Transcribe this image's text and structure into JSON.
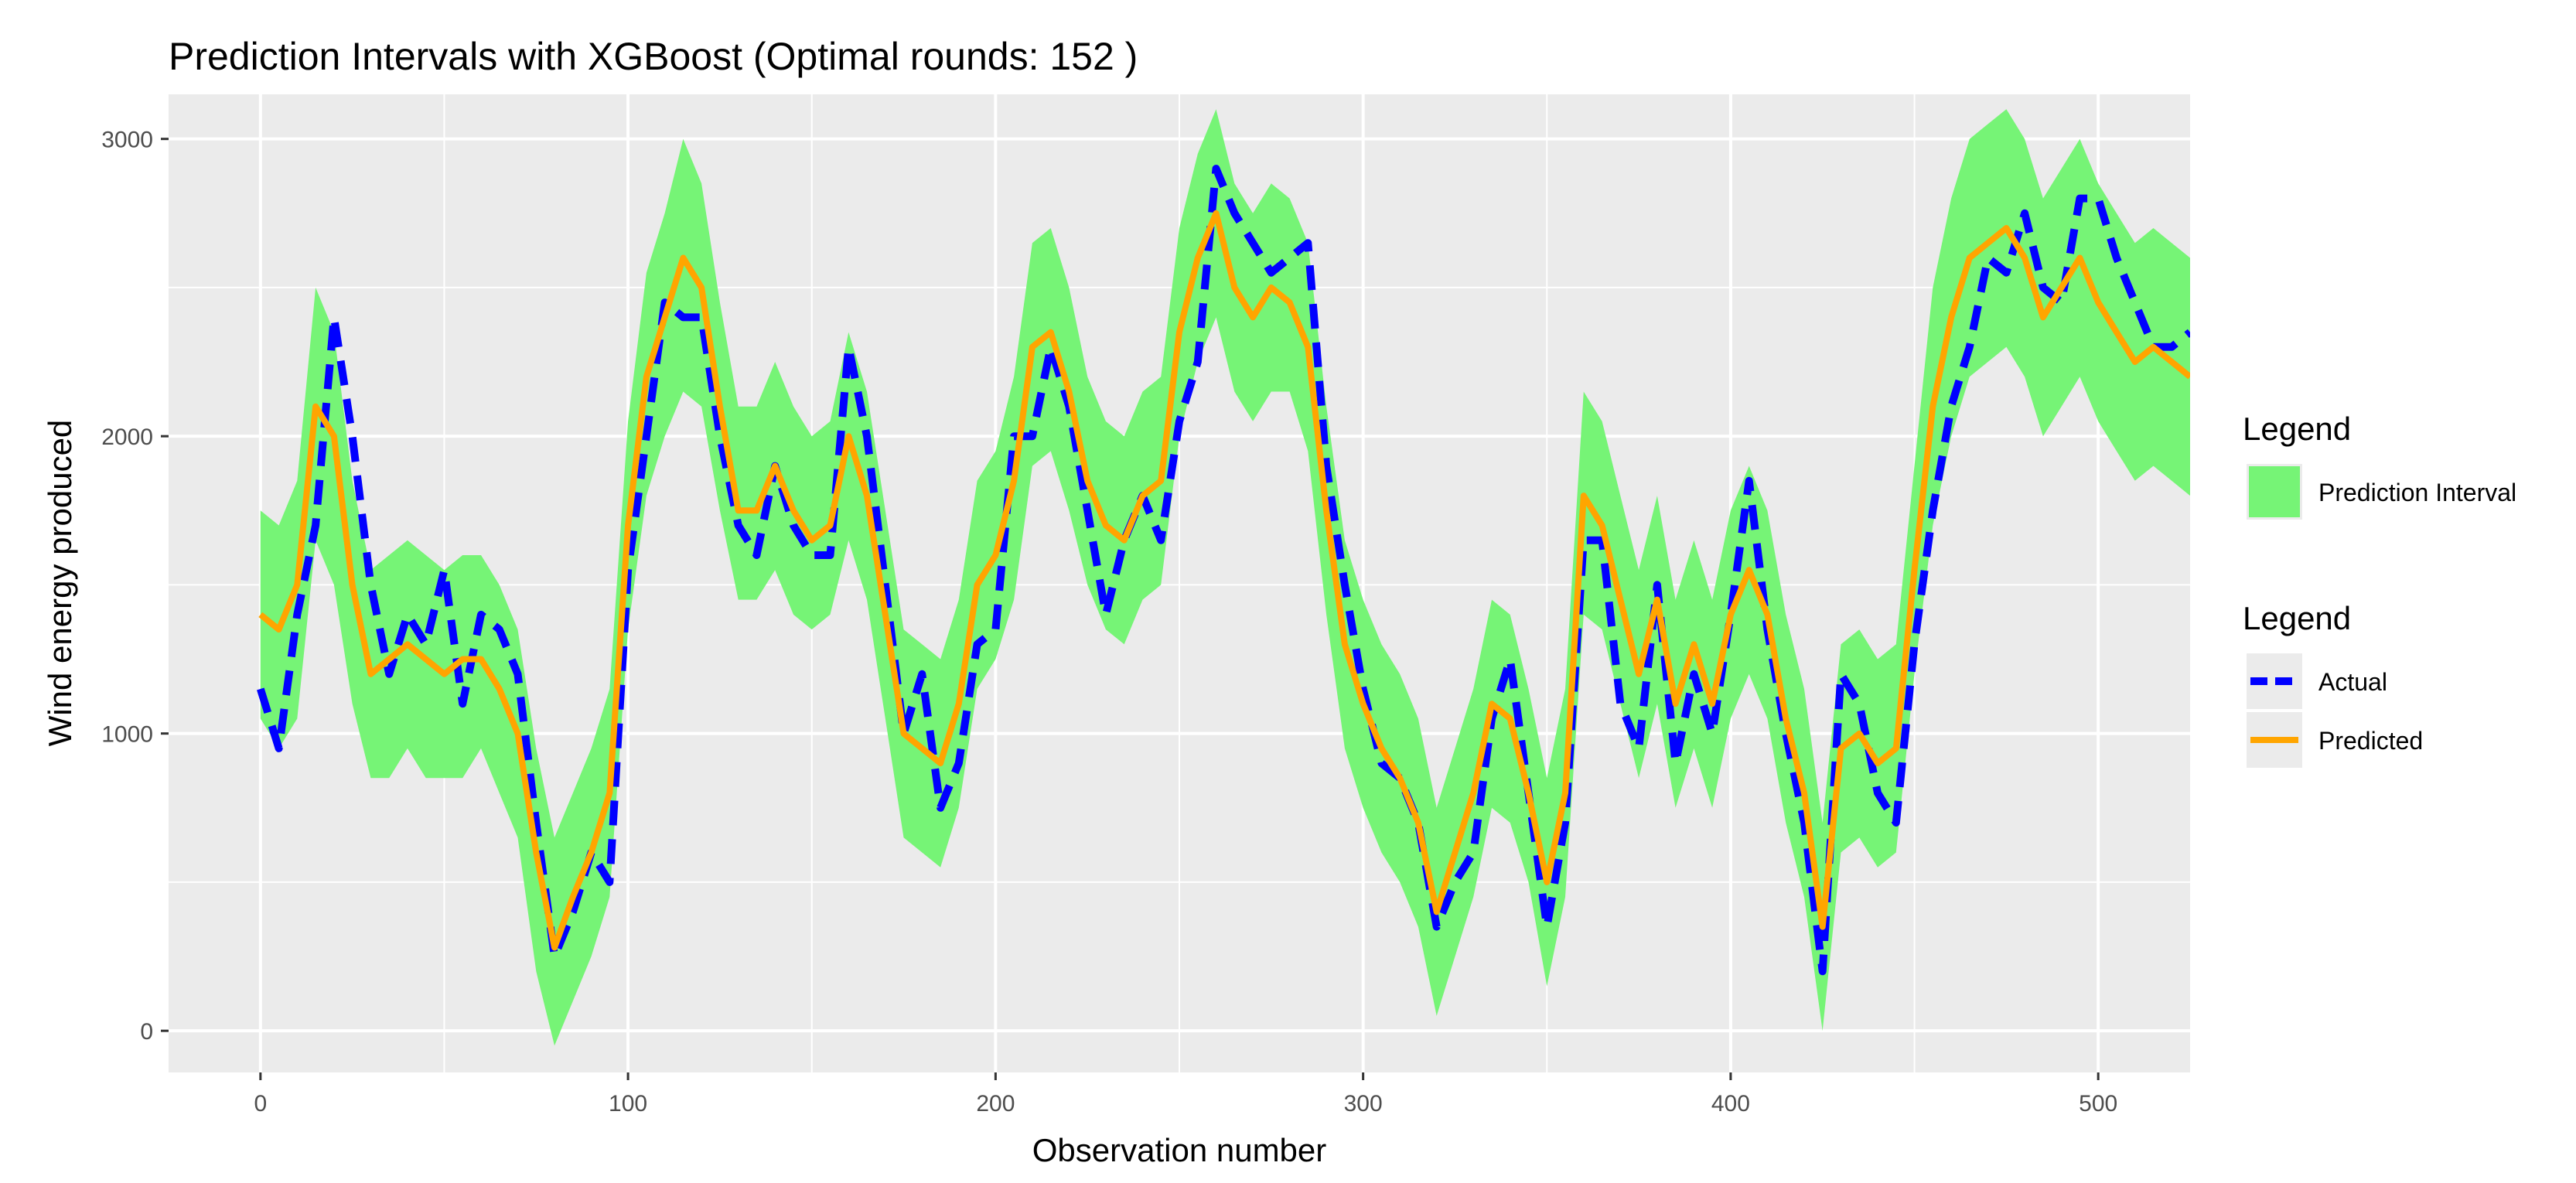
{
  "chart_data": {
    "type": "line",
    "title": "Prediction Intervals with XGBoost (Optimal rounds: 152 )",
    "xlabel": "Observation number",
    "ylabel": "Wind energy produced",
    "xlim": [
      -25,
      525
    ],
    "ylim": [
      -140,
      3150
    ],
    "x_ticks": [
      0,
      100,
      200,
      300,
      400,
      500
    ],
    "x_tick_labels": [
      "0",
      "100",
      "200",
      "300",
      "400",
      "500"
    ],
    "y_ticks": [
      0,
      1000,
      2000,
      3000
    ],
    "y_tick_labels": [
      "0",
      "1000",
      "2000",
      "3000"
    ],
    "grid": true,
    "legend_position": "right",
    "legends": [
      {
        "title": "Legend",
        "entries": [
          {
            "label": "Prediction Interval",
            "kind": "fill",
            "color": "#76f476"
          }
        ]
      },
      {
        "title": "Legend",
        "entries": [
          {
            "label": "Actual",
            "kind": "dashed-line",
            "color": "#0000ff"
          },
          {
            "label": "Predicted",
            "kind": "line",
            "color": "#ffa500"
          }
        ]
      }
    ],
    "colors": {
      "panel": "#ebebeb",
      "grid": "#ffffff",
      "interval": "#76f476",
      "actual": "#0000ff",
      "predicted": "#ffa500"
    },
    "series": [
      {
        "name": "Actual",
        "x": [
          0,
          5,
          10,
          15,
          20,
          25,
          30,
          35,
          40,
          45,
          50,
          55,
          60,
          65,
          70,
          75,
          80,
          85,
          90,
          95,
          100,
          105,
          110,
          115,
          120,
          125,
          130,
          135,
          140,
          145,
          150,
          155,
          160,
          165,
          170,
          175,
          180,
          185,
          190,
          195,
          200,
          205,
          210,
          215,
          220,
          225,
          230,
          235,
          240,
          245,
          250,
          255,
          260,
          265,
          270,
          275,
          280,
          285,
          290,
          295,
          300,
          305,
          310,
          315,
          320,
          325,
          330,
          335,
          340,
          345,
          350,
          355,
          360,
          365,
          370,
          375,
          380,
          385,
          390,
          395,
          400,
          405,
          410,
          415,
          420,
          425,
          430,
          435,
          440,
          445,
          450,
          455,
          460,
          465,
          470,
          475,
          480,
          485,
          490,
          495,
          500,
          505,
          510,
          515,
          520,
          525
        ],
        "values": [
          1150,
          950,
          1400,
          1700,
          2400,
          2000,
          1500,
          1200,
          1400,
          1300,
          1550,
          1100,
          1400,
          1350,
          1200,
          700,
          250,
          400,
          600,
          500,
          1550,
          2000,
          2450,
          2400,
          2400,
          2000,
          1700,
          1600,
          1900,
          1700,
          1600,
          1600,
          2300,
          2000,
          1500,
          1000,
          1200,
          750,
          900,
          1300,
          1350,
          2000,
          2000,
          2300,
          2100,
          1750,
          1400,
          1650,
          1800,
          1650,
          2050,
          2250,
          2900,
          2750,
          2650,
          2550,
          2600,
          2650,
          1900,
          1500,
          1150,
          900,
          850,
          700,
          350,
          500,
          600,
          1050,
          1250,
          800,
          350,
          700,
          1650,
          1650,
          1100,
          950,
          1500,
          900,
          1200,
          1000,
          1400,
          1850,
          1350,
          1000,
          700,
          200,
          1200,
          1100,
          800,
          700,
          1300,
          1750,
          2100,
          2300,
          2600,
          2550,
          2750,
          2500,
          2450,
          2800,
          2800,
          2600,
          2450,
          2300,
          2300,
          2350
        ]
      },
      {
        "name": "Predicted",
        "x": [
          0,
          5,
          10,
          15,
          20,
          25,
          30,
          35,
          40,
          45,
          50,
          55,
          60,
          65,
          70,
          75,
          80,
          85,
          90,
          95,
          100,
          105,
          110,
          115,
          120,
          125,
          130,
          135,
          140,
          145,
          150,
          155,
          160,
          165,
          170,
          175,
          180,
          185,
          190,
          195,
          200,
          205,
          210,
          215,
          220,
          225,
          230,
          235,
          240,
          245,
          250,
          255,
          260,
          265,
          270,
          275,
          280,
          285,
          290,
          295,
          300,
          305,
          310,
          315,
          320,
          325,
          330,
          335,
          340,
          345,
          350,
          355,
          360,
          365,
          370,
          375,
          380,
          385,
          390,
          395,
          400,
          405,
          410,
          415,
          420,
          425,
          430,
          435,
          440,
          445,
          450,
          455,
          460,
          465,
          470,
          475,
          480,
          485,
          490,
          495,
          500,
          505,
          510,
          515,
          520,
          525
        ],
        "values": [
          1400,
          1350,
          1500,
          2100,
          2000,
          1500,
          1200,
          1250,
          1300,
          1250,
          1200,
          1250,
          1250,
          1150,
          1000,
          600,
          280,
          450,
          600,
          800,
          1700,
          2200,
          2400,
          2600,
          2500,
          2100,
          1750,
          1750,
          1900,
          1750,
          1650,
          1700,
          2000,
          1800,
          1400,
          1000,
          950,
          900,
          1100,
          1500,
          1600,
          1850,
          2300,
          2350,
          2150,
          1850,
          1700,
          1650,
          1800,
          1850,
          2350,
          2600,
          2750,
          2500,
          2400,
          2500,
          2450,
          2300,
          1750,
          1300,
          1100,
          950,
          850,
          700,
          400,
          600,
          800,
          1100,
          1050,
          800,
          500,
          800,
          1800,
          1700,
          1450,
          1200,
          1450,
          1100,
          1300,
          1100,
          1400,
          1550,
          1400,
          1050,
          800,
          350,
          950,
          1000,
          900,
          950,
          1550,
          2100,
          2400,
          2600,
          2650,
          2700,
          2600,
          2400,
          2500,
          2600,
          2450,
          2350,
          2250,
          2300,
          2250,
          2200
        ]
      },
      {
        "name": "Prediction Interval",
        "kind": "ribbon",
        "x": [
          0,
          5,
          10,
          15,
          20,
          25,
          30,
          35,
          40,
          45,
          50,
          55,
          60,
          65,
          70,
          75,
          80,
          85,
          90,
          95,
          100,
          105,
          110,
          115,
          120,
          125,
          130,
          135,
          140,
          145,
          150,
          155,
          160,
          165,
          170,
          175,
          180,
          185,
          190,
          195,
          200,
          205,
          210,
          215,
          220,
          225,
          230,
          235,
          240,
          245,
          250,
          255,
          260,
          265,
          270,
          275,
          280,
          285,
          290,
          295,
          300,
          305,
          310,
          315,
          320,
          325,
          330,
          335,
          340,
          345,
          350,
          355,
          360,
          365,
          370,
          375,
          380,
          385,
          390,
          395,
          400,
          405,
          410,
          415,
          420,
          425,
          430,
          435,
          440,
          445,
          450,
          455,
          460,
          465,
          470,
          475,
          480,
          485,
          490,
          495,
          500,
          505,
          510,
          515,
          520,
          525
        ],
        "lower": [
          1050,
          950,
          1050,
          1650,
          1500,
          1100,
          850,
          850,
          950,
          850,
          850,
          850,
          950,
          800,
          650,
          200,
          -50,
          100,
          250,
          450,
          1350,
          1800,
          2000,
          2150,
          2100,
          1750,
          1450,
          1450,
          1550,
          1400,
          1350,
          1400,
          1650,
          1450,
          1050,
          650,
          600,
          550,
          750,
          1150,
          1250,
          1450,
          1900,
          1950,
          1750,
          1500,
          1350,
          1300,
          1450,
          1500,
          2000,
          2250,
          2400,
          2150,
          2050,
          2150,
          2150,
          1950,
          1400,
          950,
          750,
          600,
          500,
          350,
          50,
          250,
          450,
          750,
          700,
          500,
          150,
          450,
          1400,
          1350,
          1100,
          850,
          1100,
          750,
          950,
          750,
          1050,
          1200,
          1050,
          700,
          450,
          0,
          600,
          650,
          550,
          600,
          1200,
          1700,
          2000,
          2200,
          2250,
          2300,
          2200,
          2000,
          2100,
          2200,
          2050,
          1950,
          1850,
          1900,
          1850,
          1800
        ],
        "upper": [
          1750,
          1700,
          1850,
          2500,
          2350,
          1850,
          1550,
          1600,
          1650,
          1600,
          1550,
          1600,
          1600,
          1500,
          1350,
          950,
          650,
          800,
          950,
          1150,
          2050,
          2550,
          2750,
          3000,
          2850,
          2450,
          2100,
          2100,
          2250,
          2100,
          2000,
          2050,
          2350,
          2150,
          1750,
          1350,
          1300,
          1250,
          1450,
          1850,
          1950,
          2200,
          2650,
          2700,
          2500,
          2200,
          2050,
          2000,
          2150,
          2200,
          2700,
          2950,
          3100,
          2850,
          2750,
          2850,
          2800,
          2650,
          2100,
          1650,
          1450,
          1300,
          1200,
          1050,
          750,
          950,
          1150,
          1450,
          1400,
          1150,
          850,
          1150,
          2150,
          2050,
          1800,
          1550,
          1800,
          1450,
          1650,
          1450,
          1750,
          1900,
          1750,
          1400,
          1150,
          700,
          1300,
          1350,
          1250,
          1300,
          1900,
          2500,
          2800,
          3000,
          3050,
          3100,
          3000,
          2800,
          2900,
          3000,
          2850,
          2750,
          2650,
          2700,
          2650,
          2600
        ]
      }
    ]
  }
}
